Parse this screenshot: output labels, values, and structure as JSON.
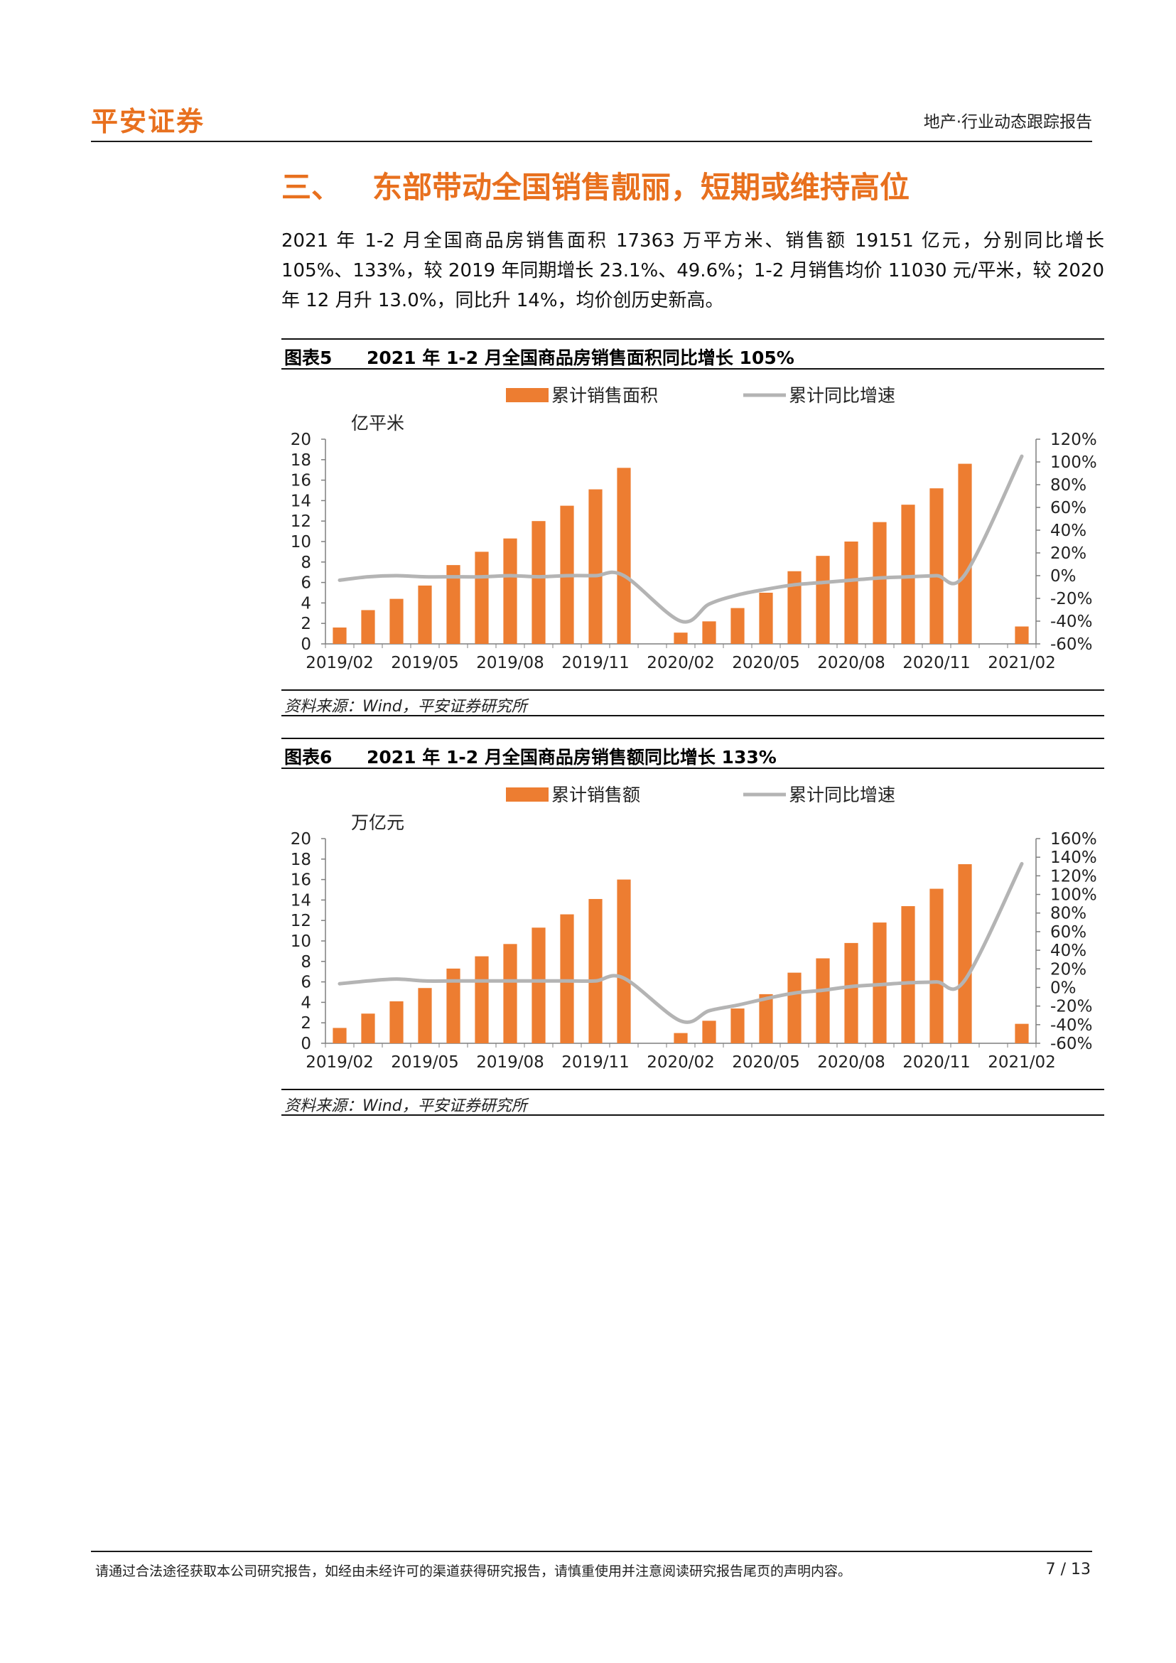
{
  "header": {
    "logo": "平安证券",
    "report_type": "地产·行业动态跟踪报告"
  },
  "section": {
    "number": "三、",
    "title": "东部带动全国销售靓丽，短期或维持高位"
  },
  "paragraph": "2021 年 1-2 月全国商品房销售面积 17363 万平方米、销售额 19151 亿元，分别同比增长 105%、133%，较 2019 年同期增长 23.1%、49.6%；1-2 月销售均价 11030 元/平米，较 2020 年 12 月升 13.0%，同比升 14%，均价创历史新高。",
  "figures": [
    {
      "label": "图表5",
      "title": "2021 年 1-2 月全国商品房销售面积同比增长 105%",
      "source": "资料来源：Wind，平安证券研究所"
    },
    {
      "label": "图表6",
      "title": "2021 年 1-2 月全国商品房销售额同比增长 133%",
      "source": "资料来源：Wind，平安证券研究所"
    }
  ],
  "chart_data": [
    {
      "type": "bar",
      "categories": [
        "2019/02",
        "2019/03",
        "2019/04",
        "2019/05",
        "2019/06",
        "2019/07",
        "2019/08",
        "2019/09",
        "2019/10",
        "2019/11",
        "2019/12",
        "2020/01",
        "2020/02",
        "2020/03",
        "2020/04",
        "2020/05",
        "2020/06",
        "2020/07",
        "2020/08",
        "2020/09",
        "2020/10",
        "2020/11",
        "2020/12",
        "2021/01",
        "2021/02"
      ],
      "tick_labels": [
        "2019/02",
        "2019/05",
        "2019/08",
        "2019/11",
        "2020/02",
        "2020/05",
        "2020/08",
        "2020/11",
        "2021/02"
      ],
      "series": [
        {
          "name": "累计销售面积",
          "kind": "bar",
          "axis": "left",
          "color": "#ed7d31",
          "values": [
            1.6,
            3.3,
            4.4,
            5.7,
            7.7,
            9.0,
            10.3,
            12.0,
            13.5,
            15.1,
            17.2,
            null,
            1.1,
            2.2,
            3.5,
            5.0,
            7.1,
            8.6,
            10.0,
            11.9,
            13.6,
            15.2,
            17.6,
            null,
            1.7
          ]
        },
        {
          "name": "累计同比增速",
          "kind": "line",
          "axis": "right",
          "color": "#b4b4b4",
          "values": [
            -0.04,
            -0.01,
            0.0,
            -0.01,
            -0.01,
            -0.01,
            0.0,
            -0.01,
            0.0,
            0.0,
            0.0,
            null,
            -0.4,
            -0.25,
            -0.17,
            -0.12,
            -0.08,
            -0.06,
            -0.04,
            -0.02,
            -0.01,
            0.0,
            0.01,
            null,
            1.05
          ]
        }
      ],
      "left_unit": "亿平米",
      "ylim_left": [
        0,
        20
      ],
      "yticks_left": [
        "0",
        "2",
        "4",
        "6",
        "8",
        "10",
        "12",
        "14",
        "16",
        "18",
        "20"
      ],
      "ylim_right": [
        -0.6,
        1.2
      ],
      "yticks_right": [
        "-60%",
        "-40%",
        "-20%",
        "0%",
        "20%",
        "40%",
        "60%",
        "80%",
        "100%",
        "120%"
      ],
      "legend_position": "top"
    },
    {
      "type": "bar",
      "categories": [
        "2019/02",
        "2019/03",
        "2019/04",
        "2019/05",
        "2019/06",
        "2019/07",
        "2019/08",
        "2019/09",
        "2019/10",
        "2019/11",
        "2019/12",
        "2020/01",
        "2020/02",
        "2020/03",
        "2020/04",
        "2020/05",
        "2020/06",
        "2020/07",
        "2020/08",
        "2020/09",
        "2020/10",
        "2020/11",
        "2020/12",
        "2021/01",
        "2021/02"
      ],
      "tick_labels": [
        "2019/02",
        "2019/05",
        "2019/08",
        "2019/11",
        "2020/02",
        "2020/05",
        "2020/08",
        "2020/11",
        "2021/02"
      ],
      "series": [
        {
          "name": "累计销售额",
          "kind": "bar",
          "axis": "left",
          "color": "#ed7d31",
          "values": [
            1.5,
            2.9,
            4.1,
            5.4,
            7.3,
            8.5,
            9.7,
            11.3,
            12.6,
            14.1,
            16.0,
            null,
            1.0,
            2.2,
            3.4,
            4.8,
            6.9,
            8.3,
            9.8,
            11.8,
            13.4,
            15.1,
            17.5,
            null,
            1.9
          ]
        },
        {
          "name": "累计同比增速",
          "kind": "line",
          "axis": "right",
          "color": "#b4b4b4",
          "values": [
            0.04,
            0.07,
            0.09,
            0.07,
            0.07,
            0.07,
            0.07,
            0.07,
            0.07,
            0.07,
            0.1,
            null,
            -0.36,
            -0.25,
            -0.19,
            -0.12,
            -0.06,
            -0.03,
            0.01,
            0.03,
            0.05,
            0.06,
            0.08,
            null,
            1.33
          ]
        }
      ],
      "left_unit": "万亿元",
      "ylim_left": [
        0,
        20
      ],
      "yticks_left": [
        "0",
        "2",
        "4",
        "6",
        "8",
        "10",
        "12",
        "14",
        "16",
        "18",
        "20"
      ],
      "ylim_right": [
        -0.6,
        1.6
      ],
      "yticks_right": [
        "-60%",
        "-40%",
        "-20%",
        "0%",
        "20%",
        "40%",
        "60%",
        "80%",
        "100%",
        "120%",
        "140%",
        "160%"
      ],
      "legend_position": "top"
    }
  ],
  "footer": {
    "disclaimer": "请通过合法途径获取本公司研究报告，如经由未经许可的渠道获得研究报告，请慎重使用并注意阅读研究报告尾页的声明内容。",
    "page": "7 / 13"
  }
}
